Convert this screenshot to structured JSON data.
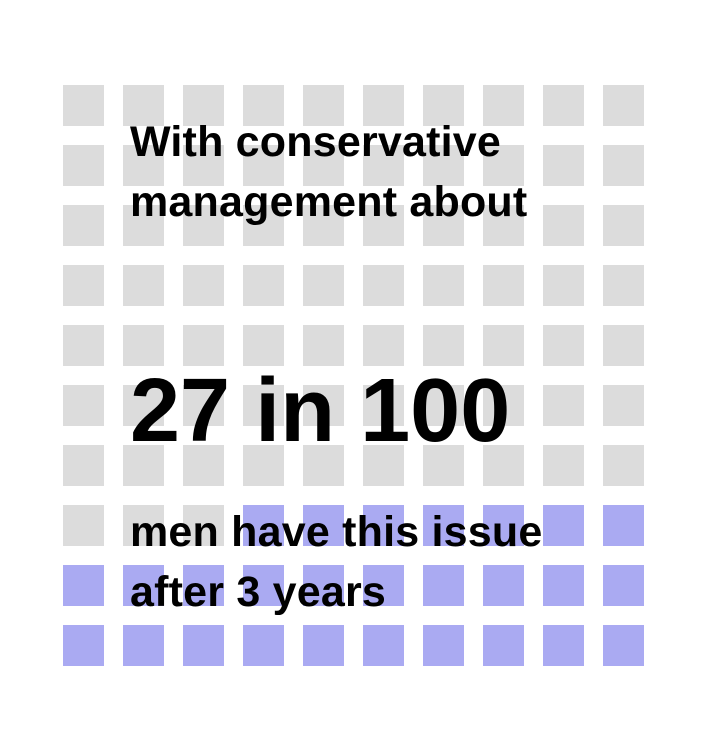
{
  "chart_data": {
    "type": "icon-array",
    "total": 100,
    "highlighted": 27,
    "columns": 10,
    "rows": 10,
    "highlight_fill": "from-bottom",
    "colors": {
      "highlighted": "#aaaaf2",
      "other": "#dcdcdc"
    }
  },
  "text": {
    "intro": "With conservative management about",
    "stat": "27 in 100",
    "outcome": "men have this issue after 3 years"
  }
}
